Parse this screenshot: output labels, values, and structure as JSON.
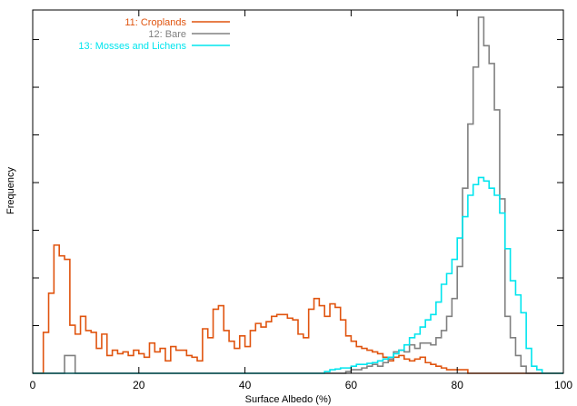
{
  "chart_data": {
    "type": "line",
    "style": "step-histogram",
    "xlabel": "Surface Albedo (%)",
    "ylabel": "Frequency",
    "xlim": [
      0,
      100
    ],
    "ylim": [
      0,
      1.0
    ],
    "x_ticks": [
      0,
      20,
      40,
      60,
      80,
      100
    ],
    "y_tick_labels_shown": false,
    "grid": false,
    "legend_position": "top-left",
    "bin_width": 1,
    "series": [
      {
        "name": "11: Croplands",
        "color": "#e0540f",
        "values": [
          0.0,
          0.0,
          0.115,
          0.225,
          0.36,
          0.33,
          0.32,
          0.135,
          0.11,
          0.16,
          0.12,
          0.115,
          0.07,
          0.11,
          0.05,
          0.065,
          0.055,
          0.06,
          0.05,
          0.065,
          0.055,
          0.045,
          0.085,
          0.06,
          0.07,
          0.035,
          0.075,
          0.065,
          0.065,
          0.05,
          0.045,
          0.035,
          0.125,
          0.1,
          0.18,
          0.19,
          0.12,
          0.09,
          0.07,
          0.105,
          0.075,
          0.12,
          0.14,
          0.13,
          0.145,
          0.16,
          0.165,
          0.165,
          0.155,
          0.15,
          0.11,
          0.1,
          0.18,
          0.21,
          0.19,
          0.16,
          0.195,
          0.185,
          0.15,
          0.105,
          0.09,
          0.075,
          0.07,
          0.065,
          0.06,
          0.055,
          0.045,
          0.035,
          0.045,
          0.05,
          0.04,
          0.035,
          0.04,
          0.045,
          0.03,
          0.025,
          0.02,
          0.015,
          0.01,
          0.01,
          0.01,
          0.01,
          0.0,
          0.0,
          0.0,
          0.0,
          0.0,
          0.0,
          0.0,
          0.0,
          0.0,
          0.0,
          0.0,
          0.0,
          0.0,
          0.0,
          0.0,
          0.0,
          0.0,
          0.0
        ]
      },
      {
        "name": "12: Bare",
        "color": "#808080",
        "values": [
          0.0,
          0.0,
          0.0,
          0.0,
          0.0,
          0.0,
          0.05,
          0.05,
          0.0,
          0.0,
          0.0,
          0.0,
          0.0,
          0.0,
          0.0,
          0.0,
          0.0,
          0.0,
          0.0,
          0.0,
          0.0,
          0.0,
          0.0,
          0.0,
          0.0,
          0.0,
          0.0,
          0.0,
          0.0,
          0.0,
          0.0,
          0.0,
          0.0,
          0.0,
          0.0,
          0.0,
          0.0,
          0.0,
          0.0,
          0.0,
          0.0,
          0.0,
          0.0,
          0.0,
          0.0,
          0.0,
          0.0,
          0.0,
          0.0,
          0.0,
          0.0,
          0.0,
          0.0,
          0.0,
          0.0,
          0.0,
          0.0,
          0.0,
          0.0,
          0.005,
          0.01,
          0.01,
          0.015,
          0.02,
          0.025,
          0.02,
          0.03,
          0.04,
          0.06,
          0.065,
          0.06,
          0.08,
          0.07,
          0.085,
          0.085,
          0.08,
          0.1,
          0.12,
          0.16,
          0.21,
          0.3,
          0.52,
          0.7,
          0.86,
          1.0,
          0.92,
          0.87,
          0.74,
          0.49,
          0.16,
          0.1,
          0.05,
          0.02,
          0.0,
          0.0,
          0.0,
          0.0,
          0.0,
          0.0,
          0.0
        ]
      },
      {
        "name": "13: Mosses and Lichens",
        "color": "#00e5ee",
        "values": [
          0.0,
          0.0,
          0.0,
          0.0,
          0.0,
          0.0,
          0.0,
          0.0,
          0.0,
          0.0,
          0.0,
          0.0,
          0.0,
          0.0,
          0.0,
          0.0,
          0.0,
          0.0,
          0.0,
          0.0,
          0.0,
          0.0,
          0.0,
          0.0,
          0.0,
          0.0,
          0.0,
          0.0,
          0.0,
          0.0,
          0.0,
          0.0,
          0.0,
          0.0,
          0.0,
          0.0,
          0.0,
          0.0,
          0.0,
          0.0,
          0.0,
          0.0,
          0.0,
          0.0,
          0.0,
          0.0,
          0.0,
          0.0,
          0.0,
          0.0,
          0.0,
          0.0,
          0.0,
          0.0,
          0.0,
          0.005,
          0.01,
          0.012,
          0.015,
          0.015,
          0.02,
          0.025,
          0.025,
          0.028,
          0.03,
          0.035,
          0.04,
          0.045,
          0.055,
          0.065,
          0.08,
          0.1,
          0.11,
          0.13,
          0.15,
          0.165,
          0.2,
          0.25,
          0.28,
          0.32,
          0.38,
          0.44,
          0.5,
          0.53,
          0.55,
          0.54,
          0.52,
          0.5,
          0.45,
          0.35,
          0.26,
          0.22,
          0.17,
          0.07,
          0.02,
          0.01,
          0.0,
          0.0,
          0.0,
          0.0
        ]
      }
    ]
  }
}
